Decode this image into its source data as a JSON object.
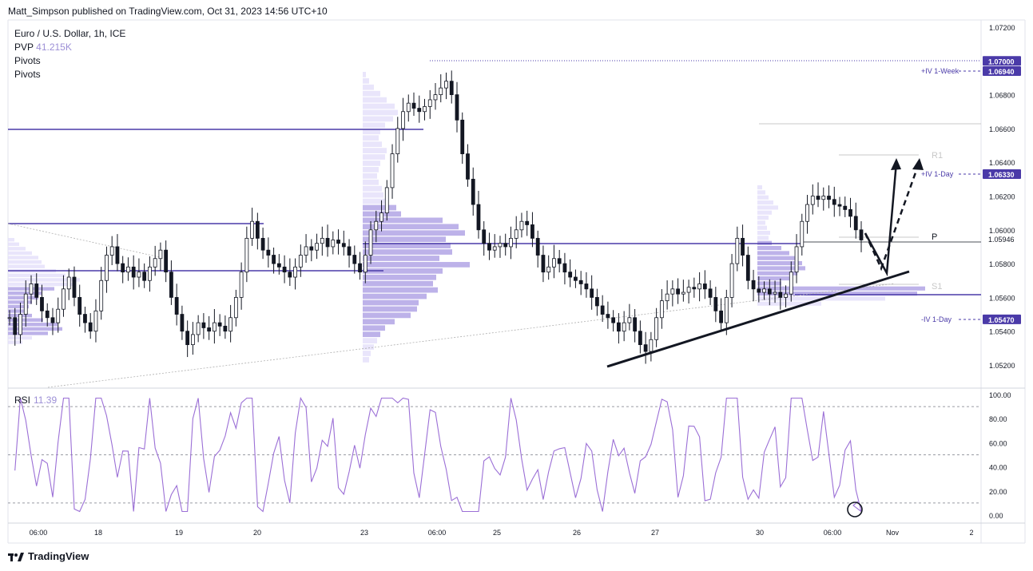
{
  "header": {
    "published": "Matt_Simpson published on TradingView.com, Oct 31, 2023 14:56 UTC+10"
  },
  "legend": {
    "symbol": "Euro / U.S. Dollar, 1h, ICE",
    "pvp_label": "PVP",
    "pvp_value": "41.215K",
    "pivots_1": "Pivots",
    "pivots_2": "Pivots"
  },
  "rsi": {
    "label": "RSI",
    "value": "11.39"
  },
  "footer": {
    "brand": "TradingView",
    "logo_icon": "tradingview-logo-icon"
  },
  "colors": {
    "accent": "#4a3aa8",
    "rsi_line": "#9b6fd6",
    "candle": "#131722",
    "volume_profile": "#b9aee8",
    "line_grey": "#c8c8c8"
  },
  "chart_data": [
    {
      "type": "candlestick",
      "title": "Euro / U.S. Dollar, 1h, ICE",
      "x_ticks": [
        "06:00",
        "18",
        "19",
        "20",
        "23",
        "06:00",
        "25",
        "26",
        "27",
        "30",
        "06:00",
        "Nov",
        "2"
      ],
      "y_ticks": [
        "1.07200",
        "1.06800",
        "1.06600",
        "1.06400",
        "1.06200",
        "1.06000",
        "1.05800",
        "1.05600",
        "1.05400",
        "1.05200"
      ],
      "ylim": [
        1.051,
        1.0725
      ],
      "price_labels": [
        {
          "label": "1.07000",
          "value": 1.07,
          "highlight": true
        },
        {
          "label": "1.06940",
          "value": 1.0694,
          "highlight": true
        },
        {
          "label": "1.06330",
          "value": 1.0633,
          "highlight": true
        },
        {
          "label": "1.05946",
          "value": 1.05946,
          "highlight": false
        },
        {
          "label": "1.05470",
          "value": 1.0547,
          "highlight": true
        }
      ],
      "annotations": [
        {
          "text": "+IV 1-Week",
          "value": 1.0694
        },
        {
          "text": "+IV 1-Day",
          "value": 1.0633
        },
        {
          "text": "R1",
          "value": 1.0645
        },
        {
          "text": "P",
          "value": 1.0597
        },
        {
          "text": "S1",
          "value": 1.0567
        },
        {
          "text": "-IV 1-Day",
          "value": 1.0547
        }
      ],
      "horizontal_levels": [
        1.0662,
        1.0605,
        1.0594,
        1.0576,
        1.0561,
        1.0594,
        1.0664
      ],
      "close_series": [
        1.0548,
        1.0538,
        1.055,
        1.0562,
        1.0568,
        1.056,
        1.0552,
        1.0548,
        1.0545,
        1.0553,
        1.0565,
        1.0572,
        1.056,
        1.055,
        1.0545,
        1.054,
        1.0552,
        1.057,
        1.0585,
        1.059,
        1.058,
        1.0575,
        1.0578,
        1.0572,
        1.0575,
        1.057,
        1.0578,
        1.0583,
        1.0588,
        1.0575,
        1.056,
        1.055,
        1.054,
        1.0532,
        1.0538,
        1.0545,
        1.0542,
        1.054,
        1.0545,
        1.0543,
        1.054,
        1.0548,
        1.056,
        1.0575,
        1.0595,
        1.0605,
        1.0595,
        1.0588,
        1.0585,
        1.058,
        1.0578,
        1.0575,
        1.0572,
        1.0578,
        1.0585,
        1.059,
        1.0588,
        1.0592,
        1.0595,
        1.059,
        1.0594,
        1.0592,
        1.059,
        1.0585,
        1.058,
        1.0575,
        1.0585,
        1.06,
        1.0605,
        1.061,
        1.0625,
        1.0645,
        1.066,
        1.067,
        1.0675,
        1.0672,
        1.067,
        1.0673,
        1.0677,
        1.068,
        1.0684,
        1.0688,
        1.068,
        1.0665,
        1.0645,
        1.063,
        1.0615,
        1.06,
        1.0592,
        1.0588,
        1.059,
        1.0592,
        1.059,
        1.0595,
        1.06,
        1.0605,
        1.0603,
        1.0595,
        1.0585,
        1.0575,
        1.0578,
        1.0583,
        1.058,
        1.0575,
        1.0572,
        1.057,
        1.0568,
        1.0565,
        1.056,
        1.0555,
        1.055,
        1.0548,
        1.0545,
        1.054,
        1.0545,
        1.0548,
        1.054,
        1.0532,
        1.0528,
        1.0535,
        1.0548,
        1.0558,
        1.0562,
        1.0565,
        1.0562,
        1.0563,
        1.0566,
        1.0565,
        1.0568,
        1.0565,
        1.056,
        1.0552,
        1.0545,
        1.056,
        1.058,
        1.0595,
        1.0585,
        1.057,
        1.0565,
        1.0563,
        1.0565,
        1.0562,
        1.0563,
        1.056,
        1.0562,
        1.0575,
        1.059,
        1.0605,
        1.0615,
        1.062,
        1.0618,
        1.062,
        1.0618,
        1.0615,
        1.0614,
        1.0612,
        1.0608,
        1.06,
        1.0594
      ]
    },
    {
      "type": "line",
      "title": "RSI",
      "series_name": "RSI",
      "current_value": 11.39,
      "y_ticks": [
        "100.00",
        "80.00",
        "60.00",
        "40.00",
        "20.00",
        "0.00"
      ],
      "ylim": [
        0,
        100
      ],
      "bands": [
        90,
        50,
        10
      ]
    }
  ]
}
